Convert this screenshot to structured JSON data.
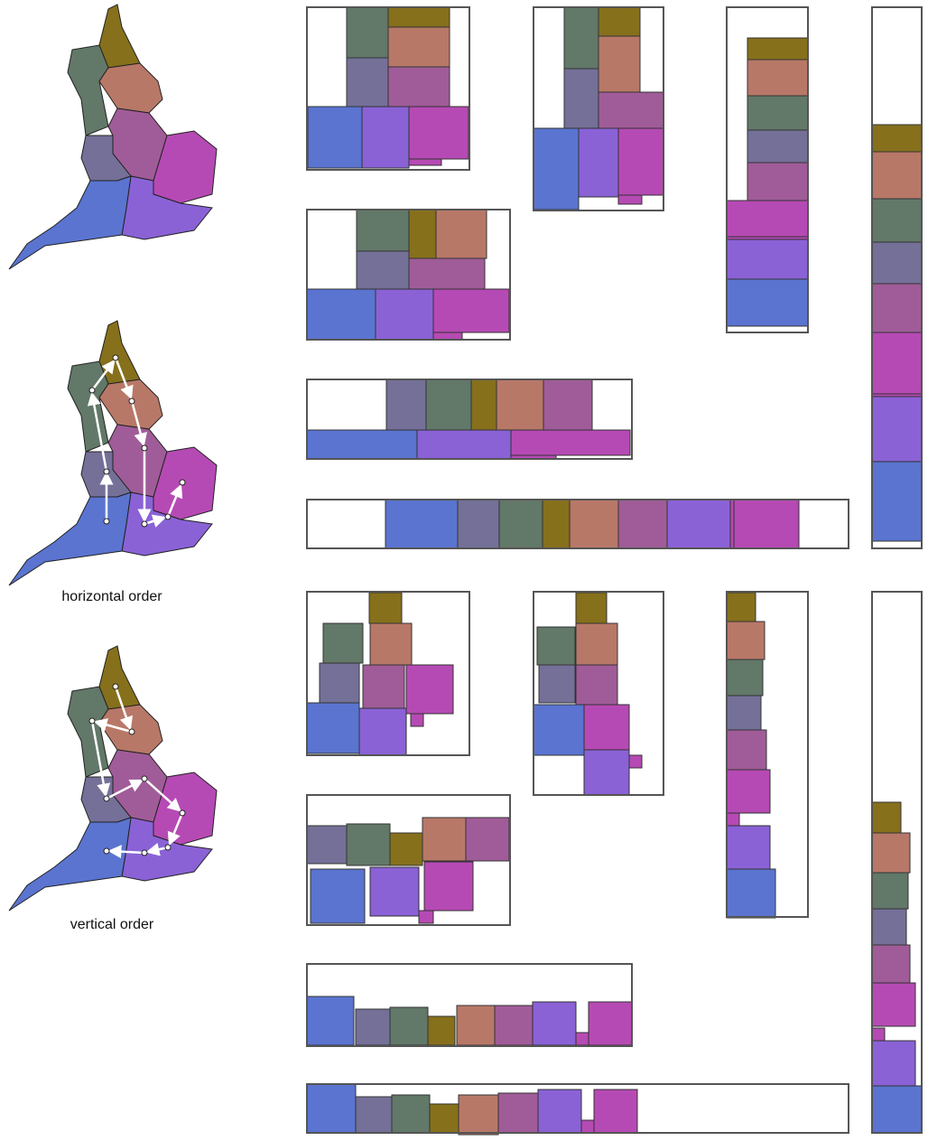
{
  "maps": [
    {
      "label": null
    },
    {
      "label": "horizontal order"
    },
    {
      "label": "vertical order"
    }
  ]
}
